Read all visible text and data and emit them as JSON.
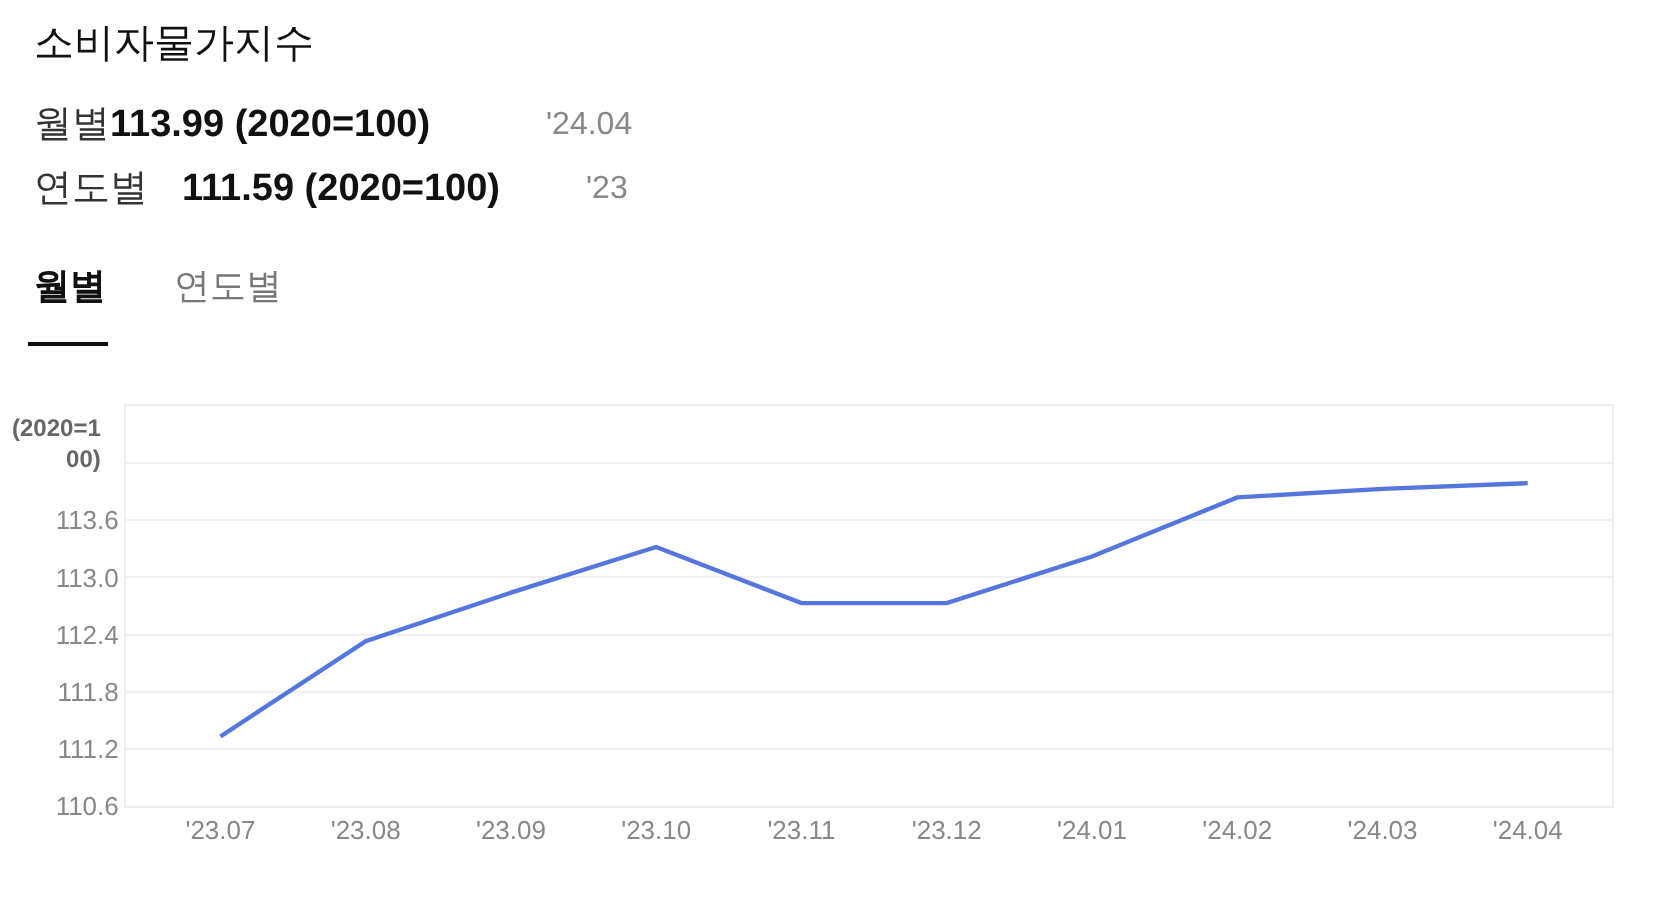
{
  "chart_data": {
    "type": "line",
    "title": "소비자물가지수",
    "annotations": [
      "월별",
      "113.99 (2020=100)",
      "'24.04",
      "연도별",
      "111.59 (2020=100)",
      "'23",
      "월별",
      "연도별"
    ],
    "ylabel": "(2020=100)",
    "categories": [
      "'23.07",
      "'23.08",
      "'23.09",
      "'23.10",
      "'23.11",
      "'23.12",
      "'24.01",
      "'24.02",
      "'24.03",
      "'24.04"
    ],
    "series": [
      {
        "color": "#5577dd",
        "values": [
          111.33,
          112.33,
          112.84,
          113.32,
          112.73,
          112.73,
          113.22,
          113.84,
          113.93,
          113.99
        ]
      }
    ],
    "ylim": [
      110.6,
      114.8
    ],
    "yticks": [
      110.6,
      111.2,
      111.8,
      112.4,
      {
        "value": 113,
        "label": "113.0"
      },
      113.6,
      {
        "value": 114.2,
        "label": null
      }
    ],
    "grid": "y",
    "legend": false,
    "marker": "none",
    "line_style": "solid"
  }
}
